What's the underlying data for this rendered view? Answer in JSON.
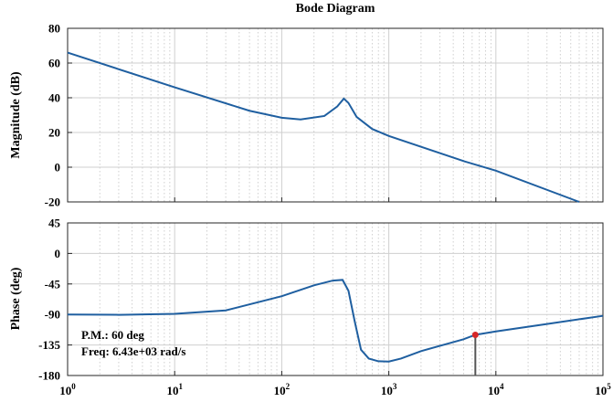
{
  "chart_data": {
    "title": "Bode Diagram",
    "xscale": "log",
    "xlim": [
      1,
      100000
    ],
    "grid": true,
    "line_color": "#1f5fa0",
    "marker_color": "#d62728",
    "stem_color": "#555555",
    "magnitude": {
      "type": "line",
      "ylabel": "Magnitude (dB)",
      "ylim": [
        -20,
        80
      ],
      "yticks": [
        -20,
        0,
        20,
        40,
        60,
        80
      ],
      "x": [
        1,
        10,
        50,
        100,
        150,
        250,
        330,
        380,
        420,
        500,
        700,
        1000,
        5000,
        10000,
        60000
      ],
      "y": [
        66,
        46,
        32.5,
        28.5,
        27.5,
        29.5,
        35,
        39.5,
        37,
        29,
        22,
        18,
        3.5,
        -2,
        -20
      ]
    },
    "phase": {
      "type": "line",
      "ylabel": "Phase (deg)",
      "ylim": [
        -180,
        45
      ],
      "yticks": [
        -180,
        -135,
        -90,
        -45,
        0,
        45
      ],
      "x": [
        1,
        3,
        10,
        30,
        100,
        200,
        300,
        370,
        420,
        480,
        550,
        650,
        800,
        1000,
        1300,
        2000,
        5000,
        6430,
        10000,
        30000,
        100000
      ],
      "y": [
        -90,
        -90.5,
        -89,
        -84,
        -63,
        -47,
        -40,
        -39,
        -55,
        -100,
        -142,
        -155,
        -159,
        -159.5,
        -155,
        -144,
        -126.5,
        -120,
        -115,
        -104,
        -92
      ]
    },
    "margin_marker": {
      "freq": 6430,
      "phase": -120,
      "annotation_line1": "P.M.: 60 deg",
      "annotation_line2": "Freq: 6.43e+03 rad/s"
    },
    "xticks": [
      {
        "base": "10",
        "exp": "0",
        "value": 1
      },
      {
        "base": "10",
        "exp": "1",
        "value": 10
      },
      {
        "base": "10",
        "exp": "2",
        "value": 100
      },
      {
        "base": "10",
        "exp": "3",
        "value": 1000
      },
      {
        "base": "10",
        "exp": "4",
        "value": 10000
      },
      {
        "base": "10",
        "exp": "5",
        "value": 100000
      }
    ]
  }
}
